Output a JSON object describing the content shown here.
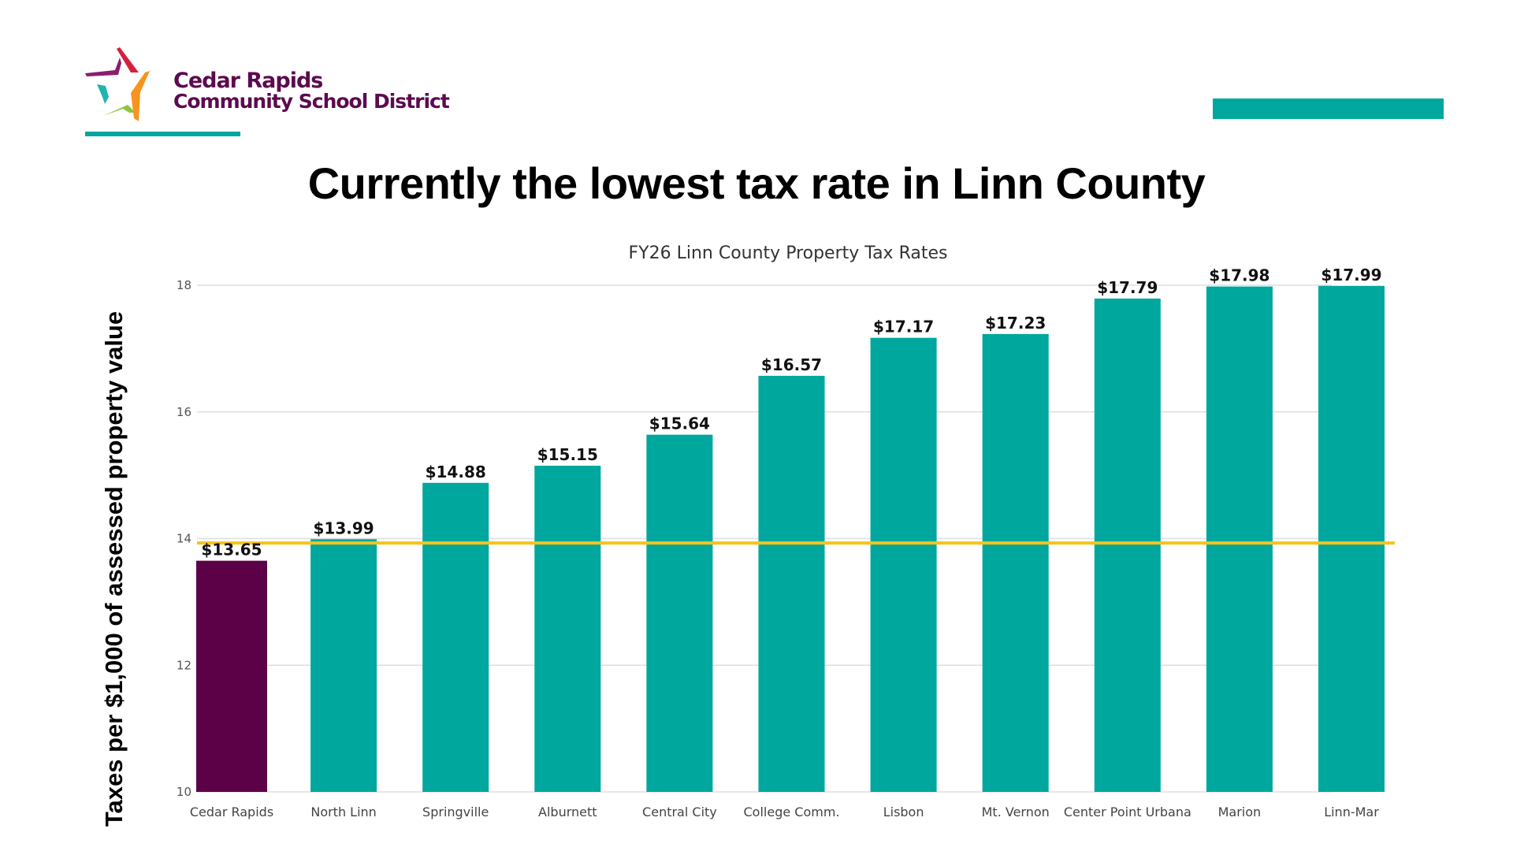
{
  "logo": {
    "line1": "Cedar Rapids",
    "line2": "Community School District",
    "colors": {
      "text": "#5c0a4f",
      "red": "#d4213d",
      "purple": "#8b1e6e",
      "teal": "#1fb5ad",
      "green": "#8dc63f",
      "orange": "#f7941d"
    }
  },
  "slide": {
    "title": "Currently the lowest tax rate in Linn County",
    "accent_color": "#00a79d"
  },
  "chart_data": {
    "type": "bar",
    "title": "FY26 Linn County Property Tax Rates",
    "xlabel": "",
    "ylabel": "Taxes per $1,000 of assessed property value",
    "ylim": [
      10,
      18
    ],
    "yticks": [
      10,
      12,
      14,
      16,
      18
    ],
    "grid": true,
    "legend": "none",
    "categories": [
      "Cedar Rapids",
      "North Linn",
      "Springville",
      "Alburnett",
      "Central City",
      "College Comm.",
      "Lisbon",
      "Mt. Vernon",
      "Center Point Urbana",
      "Marion",
      "Linn-Mar"
    ],
    "values": [
      13.65,
      13.99,
      14.88,
      15.15,
      15.64,
      16.57,
      17.17,
      17.23,
      17.79,
      17.98,
      17.99
    ],
    "data_labels": [
      "$13.65",
      "$13.99",
      "$14.88",
      "$15.15",
      "$15.64",
      "$16.57",
      "$17.17",
      "$17.23",
      "$17.79",
      "$17.98",
      "$17.99"
    ],
    "highlight_index": 0,
    "colors": {
      "bar": "#00a79d",
      "highlight": "#5c0047",
      "reference_line": "#f5c518",
      "grid": "#dddddd"
    },
    "reference_line": 13.93
  }
}
